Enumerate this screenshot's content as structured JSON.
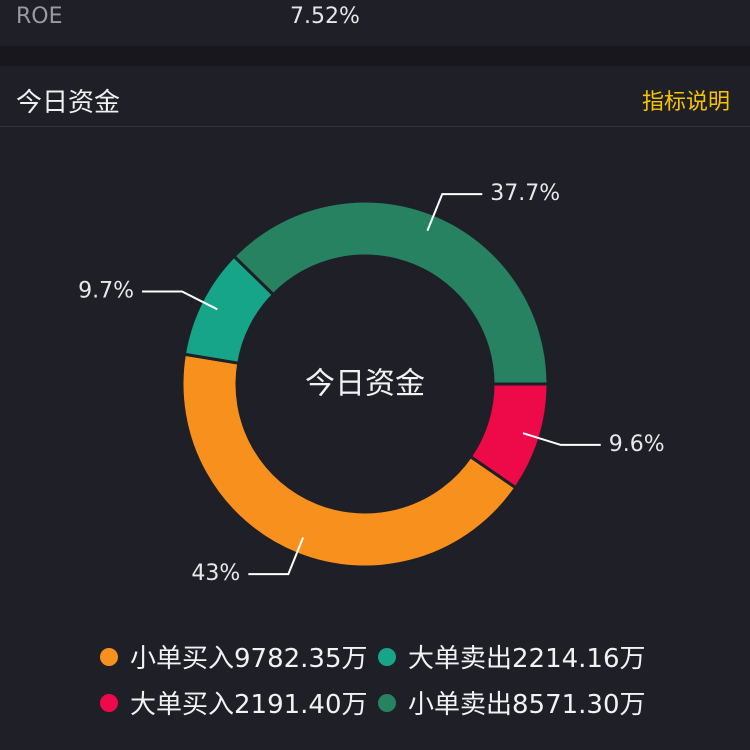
{
  "header": {
    "roe_label": "ROE",
    "roe_value": "7.52%"
  },
  "section": {
    "title": "今日资金",
    "link_label": "指标说明"
  },
  "chart_data": {
    "type": "pie",
    "title": "",
    "center_label": "今日资金",
    "slices": [
      {
        "name": "大单买入",
        "label": "9.6%",
        "value": 9.6,
        "color": "#ee0a49"
      },
      {
        "name": "小单买入",
        "label": "43%",
        "value": 43.0,
        "color": "#f8901d"
      },
      {
        "name": "大单卖出",
        "label": "9.7%",
        "value": 9.7,
        "color": "#17a589"
      },
      {
        "name": "小单卖出",
        "label": "37.7%",
        "value": 37.7,
        "color": "#268261"
      }
    ]
  },
  "legend": [
    {
      "text": "小单买入9782.35万",
      "color": "#f8901d"
    },
    {
      "text": "大单卖出2214.16万",
      "color": "#17a589"
    },
    {
      "text": "大单买入2191.40万",
      "color": "#ee0a49"
    },
    {
      "text": "小单卖出8571.30万",
      "color": "#268261"
    }
  ]
}
